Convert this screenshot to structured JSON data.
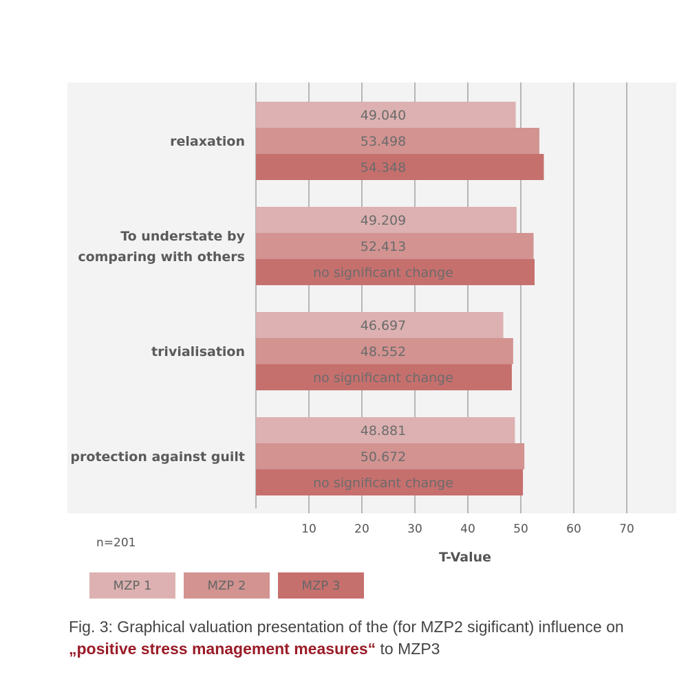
{
  "chart_data": {
    "type": "bar",
    "orientation": "horizontal",
    "categories": [
      "relaxation",
      "To understate by comparing with others",
      "trivialisation",
      "protection against guilt"
    ],
    "category_lines": [
      [
        "relaxation"
      ],
      [
        "To understate by",
        "comparing with others"
      ],
      [
        "trivialisation"
      ],
      [
        "protection against guilt"
      ]
    ],
    "series": [
      {
        "name": "MZP 1",
        "color": "#ddb1b1",
        "values": [
          49.04,
          49.209,
          46.697,
          48.881
        ],
        "labels": [
          "49.040",
          "49.209",
          "46.697",
          "48.881"
        ]
      },
      {
        "name": "MZP 2",
        "color": "#d29391",
        "values": [
          53.498,
          52.413,
          48.552,
          50.672
        ],
        "labels": [
          "53.498",
          "52.413",
          "48.552",
          "50.672"
        ]
      },
      {
        "name": "MZP 3",
        "color": "#c6706e",
        "values": [
          54.348,
          52.6,
          48.3,
          50.4
        ],
        "labels": [
          "54.348",
          "no significant change",
          "no significant change",
          "no significant change"
        ]
      }
    ],
    "xlim": [
      0,
      80
    ],
    "ticks": [
      10,
      20,
      30,
      40,
      50,
      60,
      70
    ],
    "xlabel": "T-Value",
    "note": "n=201",
    "grid": true,
    "legend_position": "bottom-left"
  },
  "caption": {
    "prefix": "Fig. 3: Graphical valuation presentation of the (for MZP2 sigificant) influence on ",
    "highlight": "„positive stress management measures“",
    "suffix": " to MZP3"
  }
}
